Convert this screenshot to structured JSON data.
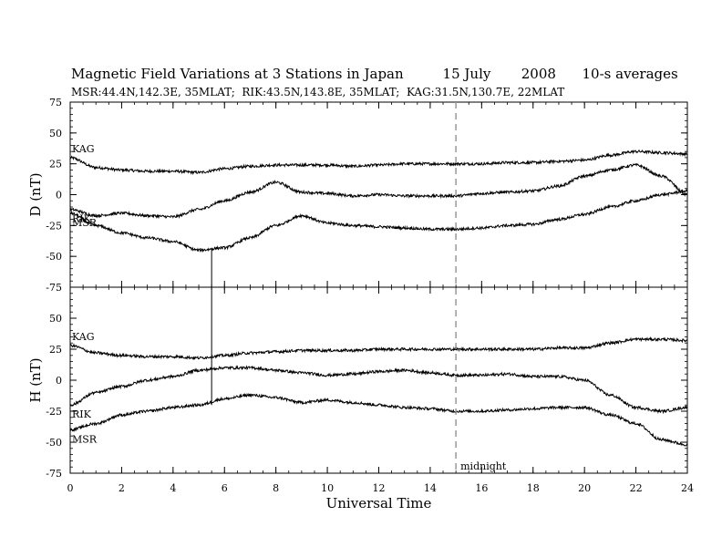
{
  "header": {
    "title": "Magnetic Field Variations at 3 Stations in Japan         15 July       2008      10-s averages",
    "subtitle": "MSR:44.4N,142.3E, 35MLAT;  RIK:43.5N,143.8E, 35MLAT;  KAG:31.5N,130.7E, 22MLAT"
  },
  "chart_data": [
    {
      "type": "line",
      "panel": "D",
      "ylabel": "D (nT)",
      "ylim": [
        -75,
        75
      ],
      "yticks": [
        75,
        50,
        25,
        0,
        -25,
        -50,
        -75
      ],
      "xlim": [
        0,
        24
      ],
      "grid": false,
      "series": [
        {
          "name": "KAG",
          "x": [
            0,
            1,
            2,
            3,
            4,
            5,
            6,
            7,
            8,
            9,
            10,
            11,
            12,
            13,
            14,
            15,
            16,
            17,
            18,
            19,
            20,
            21,
            22,
            23,
            24
          ],
          "values": [
            30,
            22,
            20,
            19,
            19,
            18,
            21,
            23,
            24,
            24,
            24,
            23,
            24,
            25,
            25,
            25,
            25,
            26,
            26,
            27,
            28,
            32,
            35,
            34,
            33
          ]
        },
        {
          "name": "RIK",
          "x": [
            0,
            1,
            2,
            3,
            4,
            5,
            6,
            7,
            8,
            9,
            10,
            11,
            12,
            13,
            14,
            15,
            16,
            17,
            18,
            19,
            20,
            21,
            22,
            23,
            24
          ],
          "values": [
            -12,
            -17,
            -15,
            -17,
            -18,
            -12,
            -5,
            2,
            10,
            2,
            1,
            -1,
            0,
            -1,
            -1,
            -1,
            1,
            2,
            3,
            7,
            15,
            20,
            24,
            15,
            0
          ]
        },
        {
          "name": "MSR",
          "x": [
            0,
            1,
            2,
            3,
            4,
            5,
            6,
            7,
            8,
            9,
            10,
            11,
            12,
            13,
            14,
            15,
            16,
            17,
            18,
            19,
            20,
            21,
            22,
            23,
            24
          ],
          "values": [
            -15,
            -25,
            -31,
            -35,
            -38,
            -45,
            -43,
            -35,
            -25,
            -17,
            -23,
            -25,
            -26,
            -27,
            -28,
            -28,
            -27,
            -25,
            -24,
            -20,
            -16,
            -10,
            -5,
            0,
            3
          ]
        }
      ],
      "labels": [
        "KAG",
        "RIK",
        "MSR"
      ],
      "annotations": []
    },
    {
      "type": "line",
      "panel": "H",
      "ylabel": "H (nT)",
      "ylim": [
        -75,
        75
      ],
      "yticks": [
        50,
        25,
        0,
        -25,
        -50,
        -75
      ],
      "xlim": [
        0,
        24
      ],
      "xticks": [
        0,
        2,
        4,
        6,
        8,
        10,
        12,
        14,
        16,
        18,
        20,
        22,
        24
      ],
      "xlabel": "Universal Time",
      "grid": false,
      "series": [
        {
          "name": "KAG",
          "x": [
            0,
            1,
            2,
            3,
            4,
            5,
            6,
            7,
            8,
            9,
            10,
            11,
            12,
            13,
            14,
            15,
            16,
            17,
            18,
            19,
            20,
            21,
            22,
            23,
            24
          ],
          "values": [
            28,
            22,
            20,
            19,
            19,
            18,
            20,
            22,
            23,
            24,
            24,
            24,
            25,
            25,
            25,
            25,
            25,
            25,
            25,
            26,
            26,
            30,
            33,
            33,
            32
          ]
        },
        {
          "name": "RIK",
          "x": [
            0,
            1,
            2,
            3,
            4,
            5,
            6,
            7,
            8,
            9,
            10,
            11,
            12,
            13,
            14,
            15,
            16,
            17,
            18,
            19,
            20,
            21,
            22,
            23,
            24
          ],
          "values": [
            -20,
            -10,
            -5,
            0,
            3,
            8,
            10,
            10,
            8,
            6,
            4,
            5,
            7,
            8,
            6,
            4,
            4,
            5,
            3,
            3,
            0,
            -12,
            -22,
            -25,
            -22
          ]
        },
        {
          "name": "MSR",
          "x": [
            0,
            1,
            2,
            3,
            4,
            5,
            6,
            7,
            8,
            9,
            10,
            11,
            12,
            13,
            14,
            15,
            16,
            17,
            18,
            19,
            20,
            21,
            22,
            23,
            24
          ],
          "values": [
            -40,
            -35,
            -28,
            -25,
            -22,
            -20,
            -15,
            -12,
            -14,
            -18,
            -16,
            -18,
            -20,
            -22,
            -23,
            -25,
            -25,
            -24,
            -23,
            -22,
            -22,
            -28,
            -35,
            -48,
            -52
          ]
        }
      ],
      "labels": [
        "KAG",
        "RIK",
        "MSR"
      ],
      "annotations": [
        "midnight"
      ]
    }
  ],
  "marker_line": {
    "x": 15,
    "label": "midnight"
  },
  "spike": {
    "x": 5.5
  }
}
